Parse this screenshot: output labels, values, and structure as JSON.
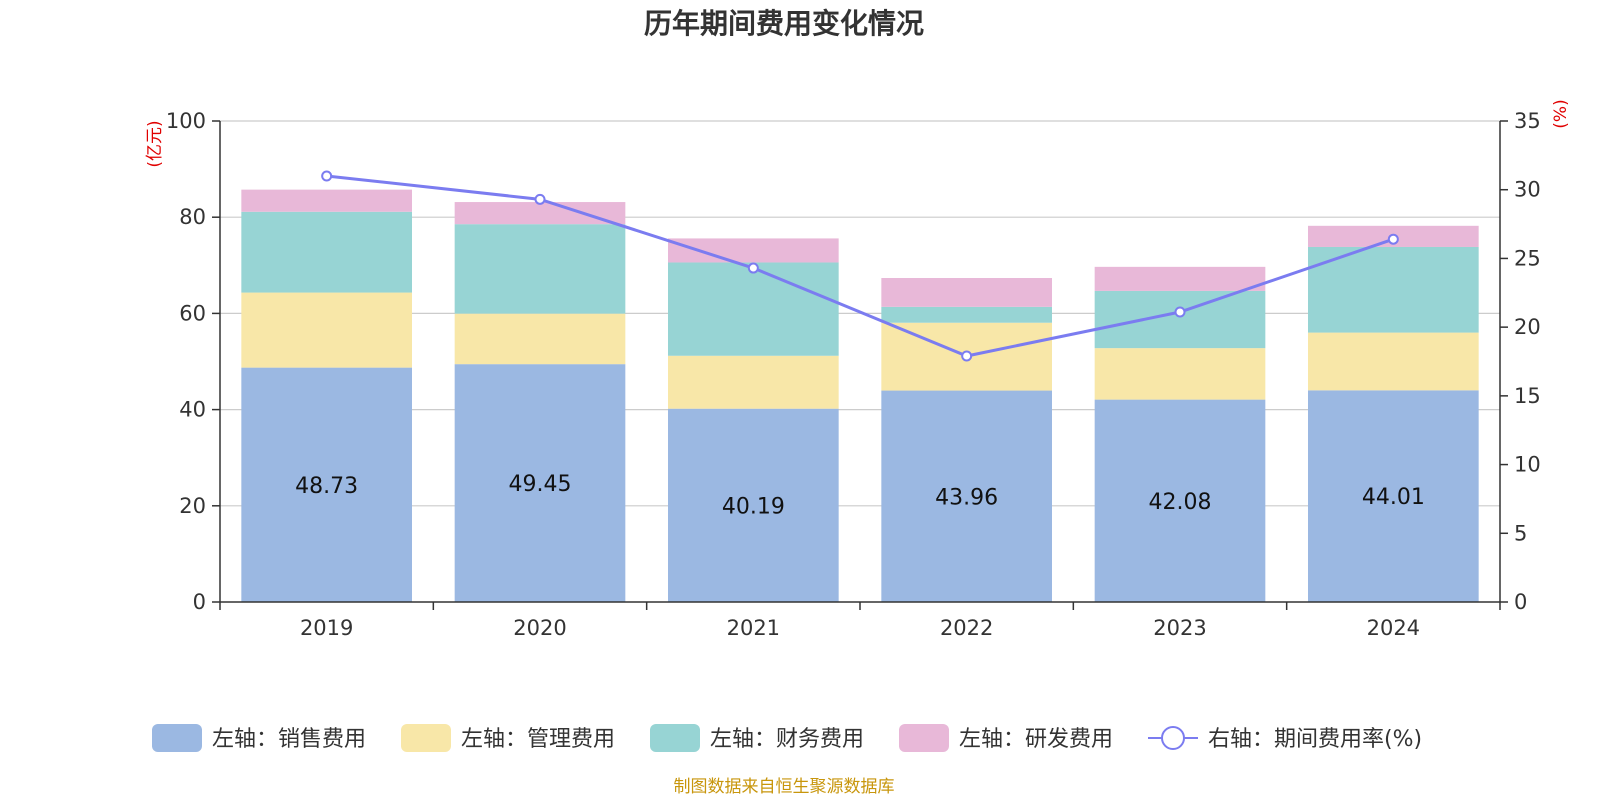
{
  "chart_data": {
    "type": "bar",
    "stacked": true,
    "title": "历年期间费用变化情况",
    "categories": [
      "2019",
      "2020",
      "2021",
      "2022",
      "2023",
      "2024"
    ],
    "left_axis": {
      "unit": "(亿元)",
      "ylim": [
        0,
        100
      ],
      "ticks": [
        "0",
        "20",
        "40",
        "60",
        "80",
        "100"
      ]
    },
    "right_axis": {
      "unit": "(%)",
      "ylim": [
        0,
        35
      ],
      "ticks": [
        "0",
        "5",
        "10",
        "15",
        "20",
        "25",
        "30",
        "35"
      ]
    },
    "series": [
      {
        "name": "左轴：销售费用",
        "type": "bar",
        "axis": "left",
        "color": "#9bb8e2",
        "values": [
          48.73,
          49.45,
          40.19,
          43.96,
          42.08,
          44.01
        ],
        "show_labels": true
      },
      {
        "name": "左轴：管理费用",
        "type": "bar",
        "axis": "left",
        "color": "#f8e7a8",
        "values": [
          15.6,
          10.5,
          11.0,
          14.1,
          10.7,
          12.0
        ]
      },
      {
        "name": "左轴：财务费用",
        "type": "bar",
        "axis": "left",
        "color": "#97d4d4",
        "values": [
          16.8,
          18.6,
          19.4,
          3.3,
          11.9,
          17.8
        ]
      },
      {
        "name": "左轴：研发费用",
        "type": "bar",
        "axis": "left",
        "color": "#e8b8d8",
        "values": [
          4.6,
          4.6,
          5.0,
          6.0,
          5.0,
          4.4
        ]
      },
      {
        "name": "右轴：期间费用率(%)",
        "type": "line",
        "axis": "right",
        "color": "#7b7cf0",
        "values": [
          31.0,
          29.3,
          24.3,
          17.9,
          21.1,
          26.4
        ]
      }
    ],
    "grid": true,
    "legend": "bottom"
  },
  "source": "制图数据来自恒生聚源数据库"
}
